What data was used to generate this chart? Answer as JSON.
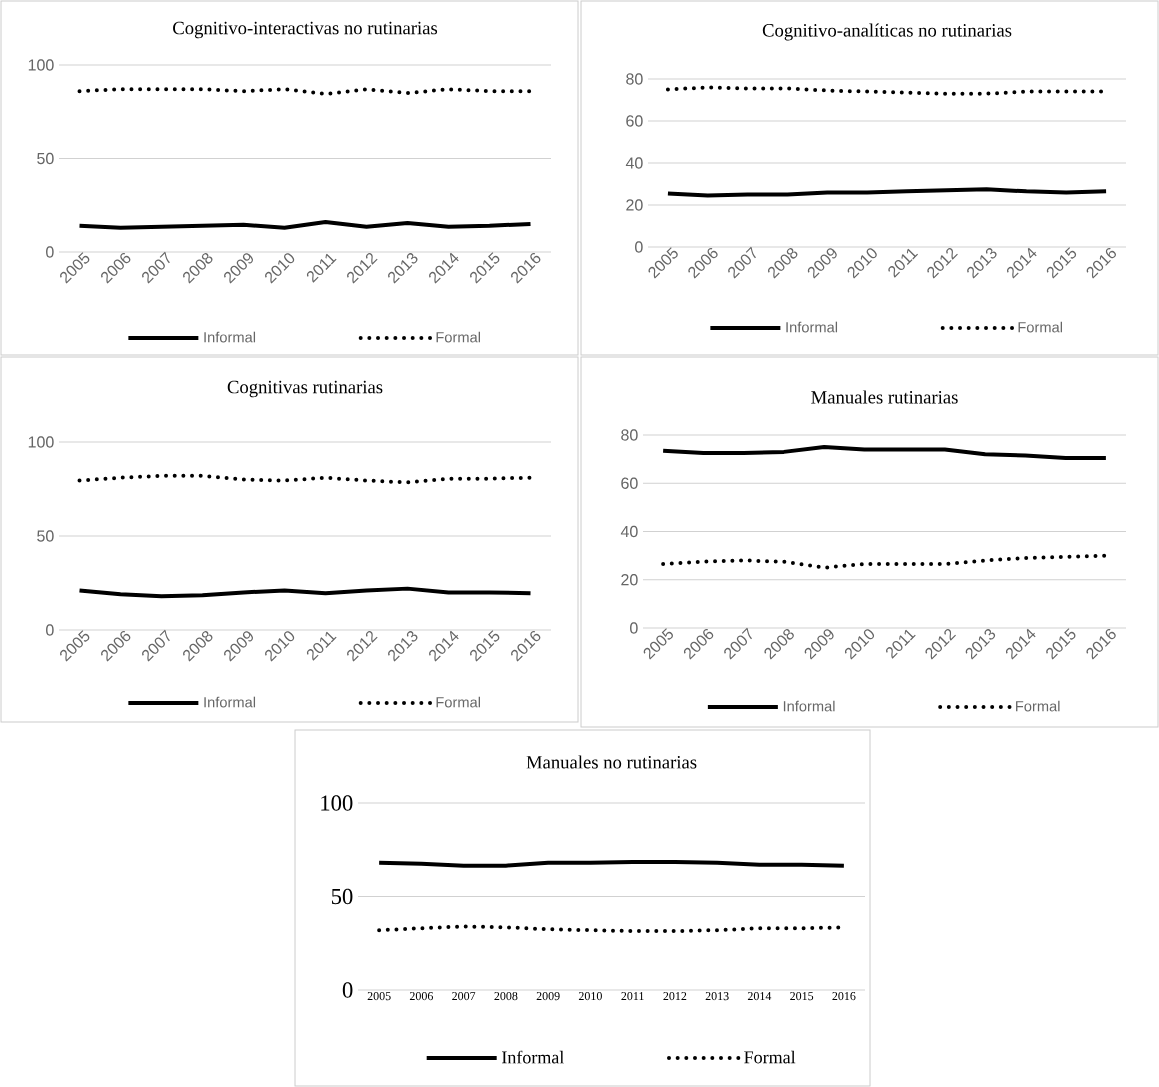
{
  "chart_data": [
    {
      "type": "line",
      "title": "Cognitivo-interactivas no rutinarias",
      "categories": [
        "2005",
        "2006",
        "2007",
        "2008",
        "2009",
        "2010",
        "2011",
        "2012",
        "2013",
        "2014",
        "2015",
        "2016"
      ],
      "ylim": [
        0,
        100
      ],
      "yticks": [
        0,
        50,
        100
      ],
      "grid": "y",
      "legend": "bottom",
      "series": [
        {
          "name": "Informal",
          "color": "#000000",
          "line_style": "solid",
          "values": [
            14,
            13,
            13.5,
            14,
            14.5,
            13,
            16,
            13.5,
            15.5,
            13.5,
            14,
            15
          ]
        },
        {
          "name": "Formal",
          "color": "#000000",
          "line_style": "dotted",
          "values": [
            86,
            87,
            87,
            87,
            86,
            87,
            84.5,
            87,
            85,
            87,
            86,
            86
          ]
        }
      ]
    },
    {
      "type": "line",
      "title": "Cognitivo-analíticas no rutinarias",
      "categories": [
        "2005",
        "2006",
        "2007",
        "2008",
        "2009",
        "2010",
        "2011",
        "2012",
        "2013",
        "2014",
        "2015",
        "2016"
      ],
      "ylim": [
        0,
        80
      ],
      "yticks": [
        0,
        20,
        40,
        60,
        80
      ],
      "grid": "y",
      "legend": "bottom",
      "series": [
        {
          "name": "Informal",
          "color": "#000000",
          "line_style": "solid",
          "values": [
            25.5,
            24.5,
            25,
            25,
            26,
            26,
            26.5,
            27,
            27.5,
            26.5,
            26,
            26.5
          ]
        },
        {
          "name": "Formal",
          "color": "#000000",
          "line_style": "dotted",
          "values": [
            75,
            76,
            75.5,
            75.5,
            74.5,
            74,
            73.5,
            73,
            73,
            74,
            74,
            74
          ]
        }
      ]
    },
    {
      "type": "line",
      "title": "Cognitivas rutinarias",
      "categories": [
        "2005",
        "2006",
        "2007",
        "2008",
        "2009",
        "2010",
        "2011",
        "2012",
        "2013",
        "2014",
        "2015",
        "2016"
      ],
      "ylim": [
        0,
        100
      ],
      "yticks": [
        0,
        50,
        100
      ],
      "grid": "y",
      "legend": "bottom",
      "series": [
        {
          "name": "Informal",
          "color": "#000000",
          "line_style": "solid",
          "values": [
            21,
            19,
            18,
            18.5,
            20,
            21,
            19.5,
            21,
            22,
            20,
            20,
            19.5
          ]
        },
        {
          "name": "Formal",
          "color": "#000000",
          "line_style": "dotted",
          "values": [
            79.5,
            81,
            82,
            82,
            80,
            79.5,
            81,
            79.5,
            78.5,
            80.5,
            80.5,
            81
          ]
        }
      ]
    },
    {
      "type": "line",
      "title": "Manuales rutinarias",
      "categories": [
        "2005",
        "2006",
        "2007",
        "2008",
        "2009",
        "2010",
        "2011",
        "2012",
        "2013",
        "2014",
        "2015",
        "2016"
      ],
      "ylim": [
        0,
        80
      ],
      "yticks": [
        0,
        20,
        40,
        60,
        80
      ],
      "grid": "y",
      "legend": "bottom",
      "series": [
        {
          "name": "Informal",
          "color": "#000000",
          "line_style": "solid",
          "values": [
            73.5,
            72.5,
            72.5,
            73,
            75,
            74,
            74,
            74,
            72,
            71.5,
            70.5,
            70.5
          ]
        },
        {
          "name": "Formal",
          "color": "#000000",
          "line_style": "dotted",
          "values": [
            26.5,
            27.5,
            28,
            27.5,
            25,
            26.5,
            26.5,
            26.5,
            28,
            29,
            29.5,
            30
          ]
        }
      ]
    },
    {
      "type": "line",
      "title": "Manuales no rutinarias",
      "categories": [
        "2005",
        "2006",
        "2007",
        "2008",
        "2009",
        "2010",
        "2011",
        "2012",
        "2013",
        "2014",
        "2015",
        "2016"
      ],
      "ylim": [
        0,
        100
      ],
      "yticks": [
        0,
        50,
        100
      ],
      "grid": "y",
      "legend": "bottom",
      "series": [
        {
          "name": "Informal",
          "color": "#000000",
          "line_style": "solid",
          "values": [
            68,
            67.5,
            66.5,
            66.5,
            68,
            68,
            68.5,
            68.5,
            68,
            67,
            67,
            66.5
          ]
        },
        {
          "name": "Formal",
          "color": "#000000",
          "line_style": "dotted",
          "values": [
            32,
            33,
            34,
            33.5,
            32.5,
            32,
            31.5,
            31.5,
            32,
            33,
            33,
            33.5
          ]
        }
      ]
    }
  ]
}
